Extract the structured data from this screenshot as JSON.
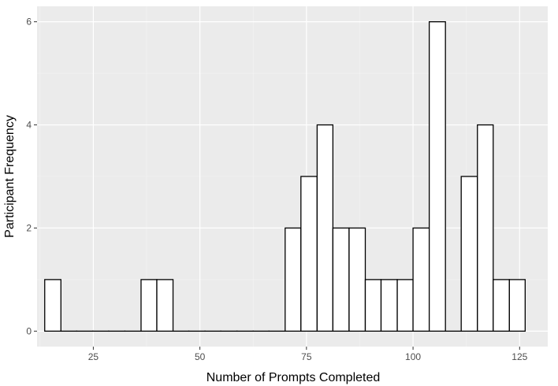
{
  "chart_data": {
    "type": "bar",
    "subtype": "histogram",
    "xlabel": "Number of Prompts Completed",
    "ylabel": "Participant Frequency",
    "xlim": [
      11.8,
      131.6
    ],
    "ylim": [
      -0.3,
      6.3
    ],
    "x_ticks": [
      25,
      50,
      75,
      100,
      125
    ],
    "y_ticks": [
      0,
      2,
      4,
      6
    ],
    "bin_width": 3.76,
    "bins": [
      {
        "start": 13.6,
        "end": 17.4,
        "count": 1
      },
      {
        "start": 17.4,
        "end": 21.1,
        "count": 0
      },
      {
        "start": 21.1,
        "end": 24.9,
        "count": 0
      },
      {
        "start": 24.9,
        "end": 28.6,
        "count": 0
      },
      {
        "start": 28.6,
        "end": 32.4,
        "count": 0
      },
      {
        "start": 32.4,
        "end": 36.2,
        "count": 0
      },
      {
        "start": 36.2,
        "end": 39.9,
        "count": 1
      },
      {
        "start": 39.9,
        "end": 43.7,
        "count": 1
      },
      {
        "start": 43.7,
        "end": 47.4,
        "count": 0
      },
      {
        "start": 47.4,
        "end": 51.2,
        "count": 0
      },
      {
        "start": 51.2,
        "end": 54.9,
        "count": 0
      },
      {
        "start": 54.9,
        "end": 58.7,
        "count": 0
      },
      {
        "start": 58.7,
        "end": 62.5,
        "count": 0
      },
      {
        "start": 62.5,
        "end": 66.2,
        "count": 0
      },
      {
        "start": 66.2,
        "end": 70.0,
        "count": 0
      },
      {
        "start": 70.0,
        "end": 73.7,
        "count": 2
      },
      {
        "start": 73.7,
        "end": 77.5,
        "count": 3
      },
      {
        "start": 77.5,
        "end": 81.2,
        "count": 4
      },
      {
        "start": 81.2,
        "end": 85.0,
        "count": 2
      },
      {
        "start": 85.0,
        "end": 88.8,
        "count": 2
      },
      {
        "start": 88.8,
        "end": 92.5,
        "count": 1
      },
      {
        "start": 92.5,
        "end": 96.3,
        "count": 1
      },
      {
        "start": 96.3,
        "end": 100.0,
        "count": 1
      },
      {
        "start": 100.0,
        "end": 103.8,
        "count": 2
      },
      {
        "start": 103.8,
        "end": 107.6,
        "count": 6
      },
      {
        "start": 107.6,
        "end": 111.3,
        "count": 0
      },
      {
        "start": 111.3,
        "end": 115.1,
        "count": 3
      },
      {
        "start": 115.1,
        "end": 118.8,
        "count": 4
      },
      {
        "start": 118.8,
        "end": 122.6,
        "count": 1
      },
      {
        "start": 122.6,
        "end": 126.3,
        "count": 1
      }
    ],
    "grid": true,
    "legend": "none",
    "colors": {
      "panel_background": "#ebebeb",
      "grid_major": "#ffffff",
      "grid_minor": "#f4f4f4",
      "bar_fill": "#ffffff",
      "bar_outline": "#000000",
      "tick_text": "#4d4d4d",
      "tick_mark": "#333333"
    }
  }
}
